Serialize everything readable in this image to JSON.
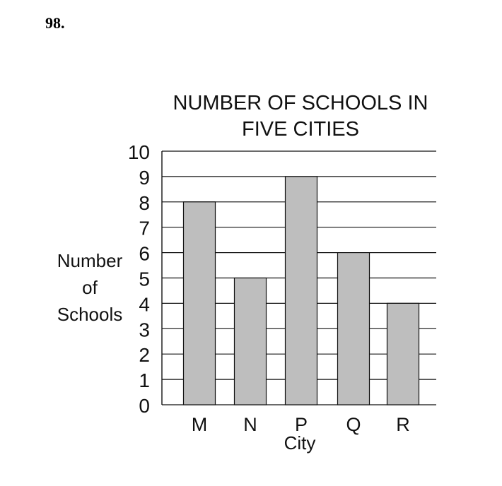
{
  "question_number": "98.",
  "chart_data": {
    "type": "bar",
    "title_line1": "NUMBER OF SCHOOLS IN",
    "title_line2": "FIVE CITIES",
    "ylabel_line1": "Number",
    "ylabel_line2": "of",
    "ylabel_line3": "Schools",
    "xlabel": "City",
    "categories": [
      "M",
      "N",
      "P",
      "Q",
      "R"
    ],
    "values": [
      8,
      5,
      9,
      6,
      4
    ],
    "ylim": [
      0,
      10
    ],
    "yticks": [
      0,
      1,
      2,
      3,
      4,
      5,
      6,
      7,
      8,
      9,
      10
    ],
    "grid": true,
    "bar_color": "#bebebe"
  }
}
